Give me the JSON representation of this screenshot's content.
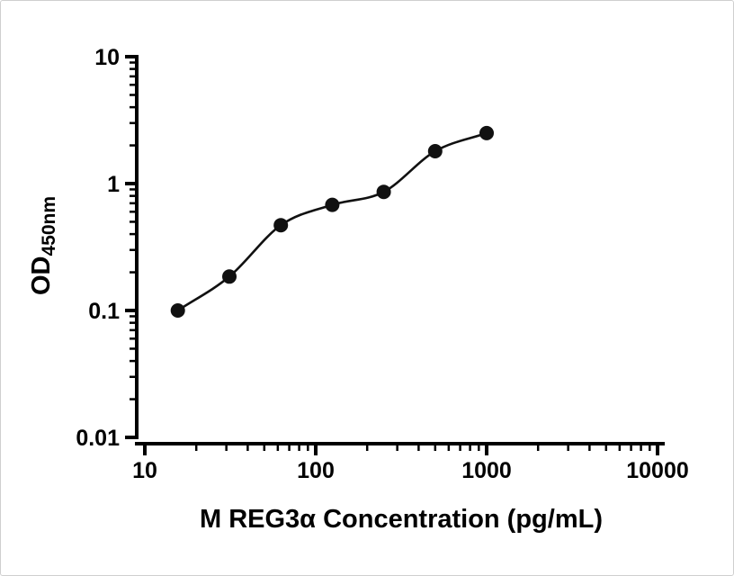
{
  "chart_data": {
    "type": "scatter",
    "title": "",
    "xlabel": "M REG3α Concentration (pg/mL)",
    "ylabel_main": "OD",
    "ylabel_sub": "450nm",
    "xscale": "log",
    "yscale": "log",
    "xlim": [
      10,
      10000
    ],
    "ylim": [
      0.01,
      10
    ],
    "grid": "off",
    "legend": "none",
    "x_ticks": [
      [
        10,
        "10"
      ],
      [
        100,
        "100"
      ],
      [
        1000,
        "1000"
      ],
      [
        10000,
        "10000"
      ]
    ],
    "y_ticks": [
      [
        0.01,
        "0.01"
      ],
      [
        0.1,
        "0.1"
      ],
      [
        1,
        "1"
      ],
      [
        10,
        "10"
      ]
    ],
    "points": {
      "x": [
        15.6,
        31.25,
        62.5,
        125,
        250,
        500,
        1000
      ],
      "y": [
        0.1,
        0.185,
        0.47,
        0.68,
        0.86,
        1.8,
        2.5
      ]
    },
    "fit_line": true,
    "marker_color": "#111111",
    "line_color": "#111111",
    "axis_color": "#000000",
    "background_color": "#ffffff"
  }
}
